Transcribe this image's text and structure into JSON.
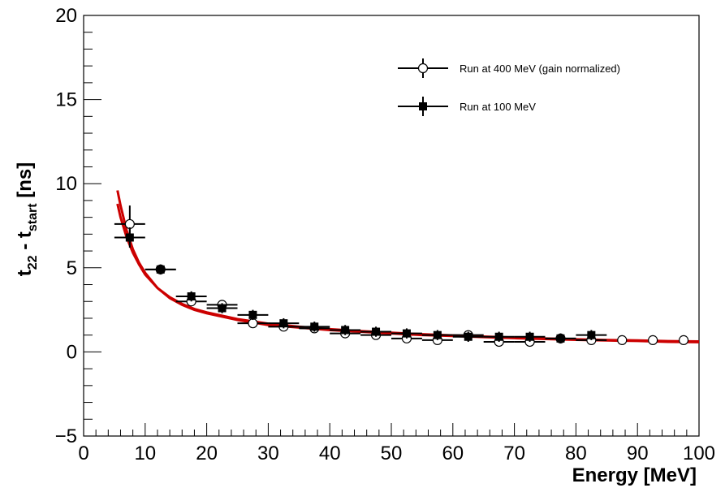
{
  "chart_data": {
    "type": "scatter",
    "xlabel": "Energy [MeV]",
    "ylabel_parts": {
      "t1": "t",
      "s1": "22",
      "mid": " - t",
      "s2": "start",
      "end": " [ns]"
    },
    "xlim": [
      0,
      100
    ],
    "ylim": [
      -5,
      20
    ],
    "x_ticks": [
      0,
      10,
      20,
      30,
      40,
      50,
      60,
      70,
      80,
      90,
      100
    ],
    "y_ticks": [
      -5,
      0,
      5,
      10,
      15,
      20
    ],
    "y_tick_labels": [
      "−5",
      "0",
      "5",
      "10",
      "15",
      "20"
    ],
    "grid": false,
    "legend_position": "top-right",
    "series": [
      {
        "name": "Run at 400 MeV (gain normalized)",
        "marker": "open-circle",
        "color": "#000000",
        "x": [
          7.5,
          12.5,
          17.5,
          22.5,
          27.5,
          32.5,
          37.5,
          42.5,
          47.5,
          52.5,
          57.5,
          62.5,
          67.5,
          72.5,
          77.5,
          82.5,
          87.5,
          92.5,
          97.5
        ],
        "y": [
          7.6,
          4.9,
          3.0,
          2.8,
          1.7,
          1.5,
          1.4,
          1.1,
          1.0,
          0.8,
          0.7,
          1.0,
          0.6,
          0.6,
          0.8,
          0.7,
          0.7,
          0.7,
          0.7
        ],
        "xerr": [
          2.5,
          2.5,
          2.5,
          2.5,
          2.5,
          2.5,
          2.5,
          2.5,
          2.5,
          2.5,
          2.5,
          2.5,
          2.5,
          2.5,
          2.5,
          2.5,
          0,
          0,
          0
        ],
        "yerr": [
          1.1,
          0.2,
          0.2,
          0.2,
          0.2,
          0.2,
          0.2,
          0.2,
          0.2,
          0.2,
          0.2,
          0.2,
          0.2,
          0.2,
          0.2,
          0.2,
          0,
          0,
          0
        ]
      },
      {
        "name": "Run at 100 MeV",
        "marker": "filled-square",
        "color": "#000000",
        "x": [
          7.5,
          12.5,
          17.5,
          22.5,
          27.5,
          32.5,
          37.5,
          42.5,
          47.5,
          52.5,
          57.5,
          62.5,
          67.5,
          72.5,
          77.5,
          82.5
        ],
        "y": [
          6.8,
          4.9,
          3.3,
          2.6,
          2.2,
          1.7,
          1.5,
          1.3,
          1.2,
          1.1,
          1.0,
          0.9,
          0.9,
          0.9,
          0.8,
          1.0
        ],
        "xerr": [
          2.5,
          2.5,
          2.5,
          2.5,
          2.5,
          2.5,
          2.5,
          2.5,
          2.5,
          2.5,
          2.5,
          2.5,
          2.5,
          2.5,
          2.5,
          2.5
        ],
        "yerr": [
          0.6,
          0.3,
          0.3,
          0.3,
          0.3,
          0.3,
          0.3,
          0.3,
          0.3,
          0.3,
          0.3,
          0.3,
          0.3,
          0.3,
          0.3,
          0.3
        ]
      }
    ],
    "fits": [
      {
        "color": "#cc0000",
        "x": [
          5.5,
          6,
          7,
          8,
          9,
          10,
          12,
          14,
          16,
          18,
          20,
          25,
          30,
          35,
          40,
          45,
          50,
          55,
          60,
          65,
          70,
          75,
          80,
          85,
          90,
          95,
          100
        ],
        "y": [
          9.6,
          8.7,
          7.2,
          6.1,
          5.3,
          4.7,
          3.8,
          3.2,
          2.8,
          2.5,
          2.3,
          1.9,
          1.6,
          1.45,
          1.3,
          1.2,
          1.1,
          1.0,
          0.95,
          0.88,
          0.82,
          0.77,
          0.72,
          0.68,
          0.65,
          0.6,
          0.58
        ]
      },
      {
        "color": "#cc0000",
        "x": [
          5.5,
          6,
          7,
          8,
          9,
          10,
          12,
          14,
          16,
          18,
          20,
          25,
          30,
          35,
          40,
          45,
          50,
          55,
          60,
          65,
          70,
          75,
          80,
          85,
          90,
          95,
          100
        ],
        "y": [
          8.8,
          8.0,
          6.8,
          5.9,
          5.2,
          4.6,
          3.8,
          3.25,
          2.85,
          2.55,
          2.35,
          1.95,
          1.68,
          1.5,
          1.35,
          1.24,
          1.14,
          1.05,
          0.98,
          0.91,
          0.85,
          0.8,
          0.75,
          0.71,
          0.68,
          0.64,
          0.62
        ]
      }
    ]
  }
}
